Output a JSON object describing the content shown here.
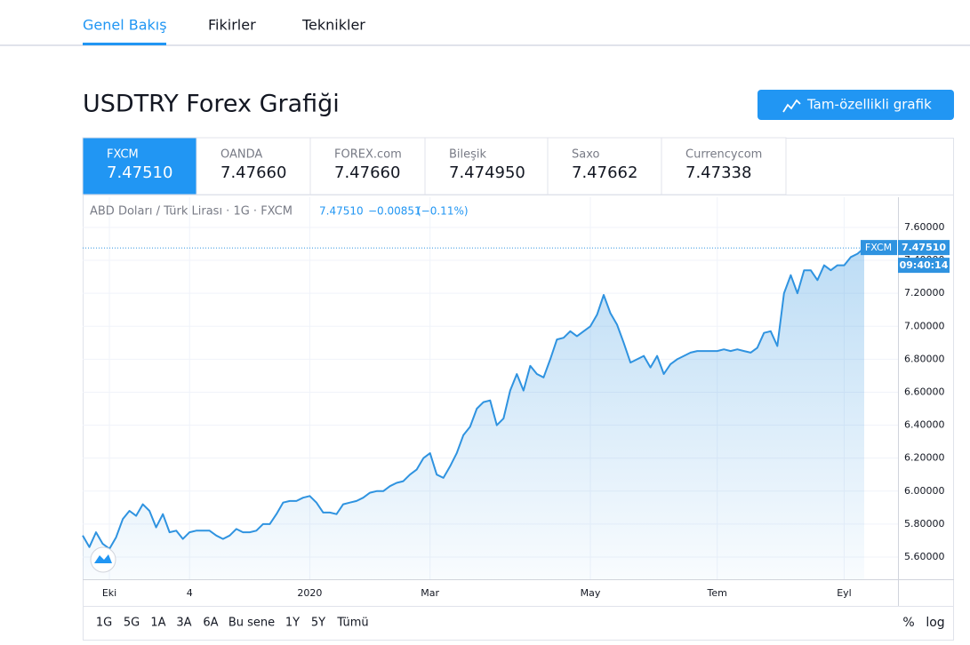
{
  "nav": {
    "tabs": [
      "Genel Bakış",
      "Fikirler",
      "Teknikler"
    ]
  },
  "header": {
    "title": "USDTRY Forex Grafiği",
    "button": "Tam-özellikli grafik"
  },
  "sources": [
    {
      "name": "FXCM",
      "price": "7.47510"
    },
    {
      "name": "OANDA",
      "price": "7.47660"
    },
    {
      "name": "FOREX.com",
      "price": "7.47660"
    },
    {
      "name": "Bileşik",
      "price": "7.474950"
    },
    {
      "name": "Saxo",
      "price": "7.47662"
    },
    {
      "name": "Currencycom",
      "price": "7.47338"
    }
  ],
  "chart_data": {
    "type": "line",
    "legend": "ABD Doları / Türk Lirası · 1G · FXCM",
    "quote": {
      "price": "7.47510",
      "change": "−0.00851",
      "change_pct": "(−0.11%)"
    },
    "last_label": {
      "source": "FXCM",
      "price": "7.47510",
      "time": "09:40:14"
    },
    "color": "#2f93e0",
    "grid": true,
    "categories": [
      null,
      null,
      null,
      null,
      "Eki",
      null,
      null,
      null,
      null,
      null,
      null,
      null,
      null,
      null,
      null,
      null,
      "4",
      null,
      null,
      null,
      null,
      null,
      null,
      null,
      null,
      null,
      null,
      null,
      null,
      null,
      null,
      null,
      null,
      null,
      "2020",
      null,
      null,
      null,
      null,
      null,
      null,
      null,
      null,
      null,
      null,
      null,
      null,
      null,
      null,
      null,
      null,
      null,
      "Mar",
      null,
      null,
      null,
      null,
      null,
      null,
      null,
      null,
      null,
      null,
      null,
      null,
      null,
      null,
      null,
      null,
      null,
      null,
      null,
      null,
      null,
      null,
      null,
      "May",
      null,
      null,
      null,
      null,
      null,
      null,
      null,
      null,
      null,
      null,
      null,
      null,
      null,
      null,
      null,
      null,
      null,
      null,
      "Tem",
      null,
      null,
      null,
      null,
      null,
      null,
      null,
      null,
      null,
      null,
      null,
      null,
      null,
      null,
      null,
      null,
      null,
      null,
      "Eyl",
      null,
      null,
      null
    ],
    "values": [
      5.73,
      5.66,
      5.75,
      5.68,
      5.65,
      5.72,
      5.83,
      5.88,
      5.85,
      5.92,
      5.88,
      5.78,
      5.86,
      5.75,
      5.76,
      5.71,
      5.75,
      5.76,
      5.76,
      5.76,
      5.73,
      5.71,
      5.73,
      5.77,
      5.75,
      5.75,
      5.76,
      5.8,
      5.8,
      5.86,
      5.93,
      5.94,
      5.94,
      5.96,
      5.97,
      5.93,
      5.87,
      5.87,
      5.86,
      5.92,
      5.93,
      5.94,
      5.96,
      5.99,
      6.0,
      6.0,
      6.03,
      6.05,
      6.06,
      6.1,
      6.13,
      6.2,
      6.23,
      6.1,
      6.08,
      6.15,
      6.23,
      6.34,
      6.39,
      6.5,
      6.54,
      6.55,
      6.4,
      6.44,
      6.61,
      6.71,
      6.61,
      6.76,
      6.71,
      6.69,
      6.8,
      6.92,
      6.93,
      6.97,
      6.94,
      6.97,
      7.0,
      7.07,
      7.19,
      7.08,
      7.01,
      6.9,
      6.78,
      6.8,
      6.82,
      6.75,
      6.82,
      6.71,
      6.77,
      6.8,
      6.82,
      6.84,
      6.85,
      6.85,
      6.85,
      6.85,
      6.86,
      6.85,
      6.86,
      6.85,
      6.84,
      6.87,
      6.96,
      6.97,
      6.88,
      7.2,
      7.31,
      7.2,
      7.34,
      7.34,
      7.28,
      7.37,
      7.34,
      7.37,
      7.37,
      7.42,
      7.44,
      7.4751
    ],
    "ylim": [
      5.465,
      7.783
    ],
    "yticks": [
      {
        "value": 5.6,
        "label": "5.60000"
      },
      {
        "value": 5.8,
        "label": "5.80000"
      },
      {
        "value": 6.0,
        "label": "6.00000"
      },
      {
        "value": 6.2,
        "label": "6.20000"
      },
      {
        "value": 6.4,
        "label": "6.40000"
      },
      {
        "value": 6.6,
        "label": "6.60000"
      },
      {
        "value": 6.8,
        "label": "6.80000"
      },
      {
        "value": 7.0,
        "label": "7.00000"
      },
      {
        "value": 7.2,
        "label": "7.20000"
      },
      {
        "value": 7.4,
        "label": "7.40000"
      },
      {
        "value": 7.6,
        "label": "7.60000"
      }
    ]
  },
  "ranges": [
    "1G",
    "5G",
    "1A",
    "3A",
    "6A",
    "Bu sene",
    "1Y",
    "5Y",
    "Tümü"
  ],
  "scale_options": [
    "%",
    "log"
  ]
}
